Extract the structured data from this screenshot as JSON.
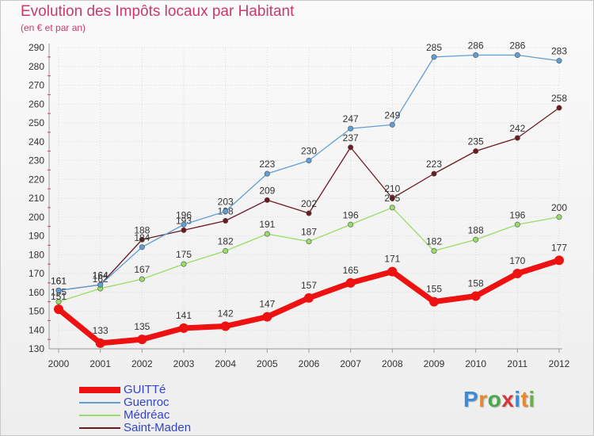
{
  "chart_data": {
    "type": "line",
    "title": "Evolution des Impôts locaux par Habitant",
    "subtitle": "(en € et par an)",
    "categories": [
      "2000",
      "2001",
      "2002",
      "2003",
      "2004",
      "2005",
      "2006",
      "2007",
      "2008",
      "2009",
      "2010",
      "2011",
      "2012"
    ],
    "y_ticks": [
      "130",
      "140",
      "150",
      "160",
      "170",
      "180",
      "190",
      "200",
      "210",
      "220",
      "230",
      "240",
      "250",
      "260",
      "270",
      "280",
      "290"
    ],
    "ylim": [
      130,
      290
    ],
    "series": [
      {
        "name": "Saint-Maden",
        "color": "#6b1a22",
        "values": [
          161,
          164,
          188,
          193,
          198,
          209,
          202,
          237,
          210,
          223,
          235,
          242,
          258
        ],
        "labels": [
          "161",
          "164",
          "188",
          "193",
          "198",
          "209",
          "202",
          "237",
          "210",
          "223",
          "235",
          "242",
          "258"
        ]
      },
      {
        "name": "Médréac",
        "color": "#99dd66",
        "values": [
          155,
          162,
          167,
          175,
          182,
          191,
          187,
          196,
          205,
          182,
          188,
          196,
          200
        ],
        "labels": [
          "155",
          "162",
          "167",
          "175",
          "182",
          "191",
          "187",
          "196",
          "205",
          "182",
          "188",
          "196",
          "200"
        ]
      },
      {
        "name": "Guenroc",
        "color": "#5f9fd6",
        "values": [
          161,
          164,
          184,
          196,
          203,
          223,
          230,
          247,
          249,
          285,
          286,
          286,
          283
        ],
        "labels": [
          "161",
          "164",
          "184",
          "196",
          "203",
          "223",
          "230",
          "247",
          "249",
          "285",
          "286",
          "286",
          "283"
        ]
      },
      {
        "name": "GUITTé",
        "color": "#ee1111",
        "values": [
          151,
          133,
          135,
          141,
          142,
          147,
          157,
          165,
          171,
          155,
          158,
          170,
          177
        ],
        "labels": [
          "151",
          "133",
          "135",
          "141",
          "142",
          "147",
          "157",
          "165",
          "171",
          "155",
          "158",
          "170",
          "177"
        ]
      }
    ],
    "legend": [
      "GUITTé",
      "Guenroc",
      "Médréac",
      "Saint-Maden"
    ]
  },
  "brand": {
    "letters": [
      "P",
      "r",
      "o",
      "x",
      "i",
      "t",
      "i"
    ]
  }
}
